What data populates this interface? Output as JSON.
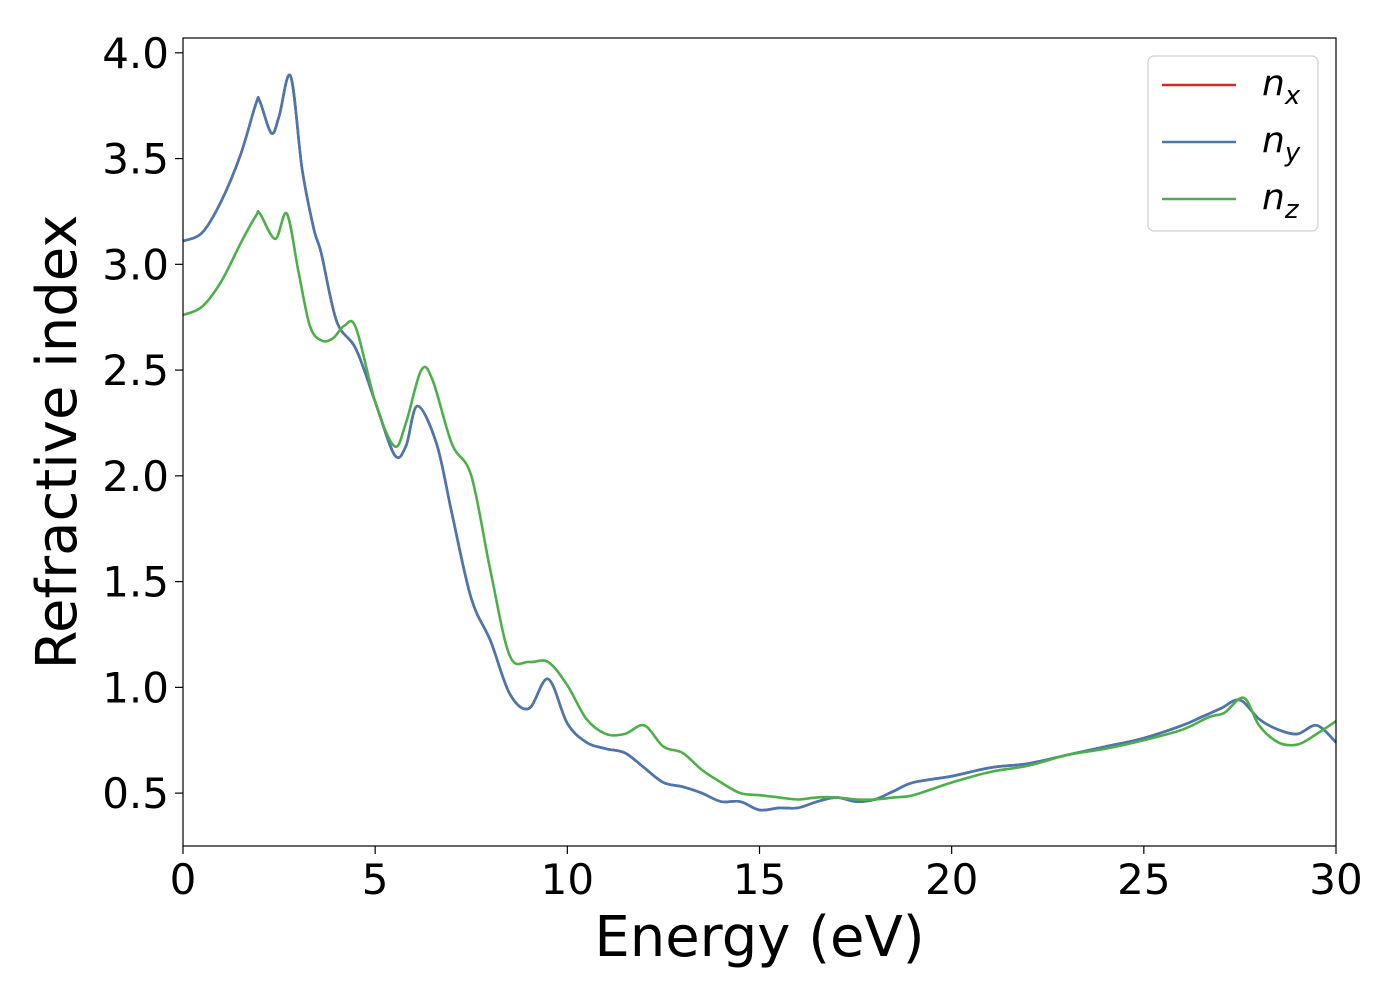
{
  "chart_data": {
    "type": "line",
    "title": "",
    "xlabel": "Energy (eV)",
    "ylabel": "Refractive index",
    "xlim": [
      0,
      30
    ],
    "ylim": [
      0.25,
      4.07
    ],
    "xticks": [
      "0",
      "5",
      "10",
      "15",
      "20",
      "25",
      "30"
    ],
    "yticks": [
      "0.5",
      "1.0",
      "1.5",
      "2.0",
      "2.5",
      "3.0",
      "3.5",
      "4.0"
    ],
    "grid": false,
    "legend_position": "top-right",
    "legend": [
      {
        "base": "n",
        "sub": "x"
      },
      {
        "base": "n",
        "sub": "y"
      },
      {
        "base": "n",
        "sub": "z"
      }
    ],
    "series": [
      {
        "color": "#d62728",
        "x": [
          0,
          0.5,
          1.0,
          1.5,
          1.9,
          2.0,
          2.3,
          2.5,
          2.8,
          3.1,
          3.4,
          3.6,
          4.0,
          4.5,
          5.0,
          5.5,
          5.8,
          6.1,
          6.6,
          7.0,
          7.5,
          8.0,
          8.5,
          9.0,
          9.5,
          10.0,
          10.5,
          11.0,
          11.5,
          12.0,
          12.5,
          13.0,
          13.5,
          14.0,
          14.5,
          15.0,
          15.5,
          16.0,
          16.5,
          17.0,
          17.5,
          18.0,
          18.5,
          19.0,
          20.0,
          21.0,
          22.0,
          23.0,
          24.0,
          25.0,
          26.0,
          26.5,
          27.0,
          27.5,
          28.0,
          28.5,
          29.0,
          29.5,
          30.0
        ],
        "y": [
          3.11,
          3.15,
          3.3,
          3.52,
          3.76,
          3.77,
          3.62,
          3.7,
          3.89,
          3.45,
          3.17,
          3.05,
          2.73,
          2.6,
          2.35,
          2.1,
          2.14,
          2.33,
          2.15,
          1.82,
          1.42,
          1.22,
          0.97,
          0.9,
          1.04,
          0.83,
          0.74,
          0.71,
          0.69,
          0.62,
          0.55,
          0.53,
          0.5,
          0.46,
          0.46,
          0.42,
          0.43,
          0.43,
          0.46,
          0.48,
          0.46,
          0.47,
          0.51,
          0.55,
          0.58,
          0.62,
          0.64,
          0.68,
          0.72,
          0.76,
          0.82,
          0.86,
          0.9,
          0.94,
          0.85,
          0.8,
          0.78,
          0.82,
          0.74
        ]
      },
      {
        "color": "#4878b0",
        "x": [
          0,
          0.5,
          1.0,
          1.5,
          1.9,
          2.0,
          2.3,
          2.5,
          2.8,
          3.1,
          3.4,
          3.6,
          4.0,
          4.5,
          5.0,
          5.5,
          5.8,
          6.1,
          6.6,
          7.0,
          7.5,
          8.0,
          8.5,
          9.0,
          9.5,
          10.0,
          10.5,
          11.0,
          11.5,
          12.0,
          12.5,
          13.0,
          13.5,
          14.0,
          14.5,
          15.0,
          15.5,
          16.0,
          16.5,
          17.0,
          17.5,
          18.0,
          18.5,
          19.0,
          20.0,
          21.0,
          22.0,
          23.0,
          24.0,
          25.0,
          26.0,
          26.5,
          27.0,
          27.5,
          28.0,
          28.5,
          29.0,
          29.5,
          30.0
        ],
        "y": [
          3.11,
          3.15,
          3.3,
          3.52,
          3.76,
          3.77,
          3.62,
          3.7,
          3.89,
          3.45,
          3.17,
          3.05,
          2.73,
          2.6,
          2.35,
          2.1,
          2.14,
          2.33,
          2.15,
          1.82,
          1.42,
          1.22,
          0.97,
          0.9,
          1.04,
          0.83,
          0.74,
          0.71,
          0.69,
          0.62,
          0.55,
          0.53,
          0.5,
          0.46,
          0.46,
          0.42,
          0.43,
          0.43,
          0.46,
          0.48,
          0.46,
          0.47,
          0.51,
          0.55,
          0.58,
          0.62,
          0.64,
          0.68,
          0.72,
          0.76,
          0.82,
          0.86,
          0.9,
          0.94,
          0.85,
          0.8,
          0.78,
          0.82,
          0.74
        ]
      },
      {
        "color": "#4daf4a",
        "x": [
          0,
          0.5,
          1.0,
          1.5,
          1.9,
          2.0,
          2.4,
          2.7,
          3.0,
          3.3,
          3.6,
          3.9,
          4.2,
          4.5,
          5.0,
          5.5,
          5.8,
          6.2,
          6.5,
          7.0,
          7.5,
          8.0,
          8.5,
          9.0,
          9.5,
          10.0,
          10.5,
          11.0,
          11.5,
          12.0,
          12.5,
          13.0,
          13.5,
          14.0,
          14.5,
          15.0,
          15.5,
          16.0,
          16.5,
          17.0,
          17.5,
          18.0,
          18.5,
          19.0,
          20.0,
          21.0,
          22.0,
          23.0,
          24.0,
          25.0,
          26.0,
          26.7,
          27.1,
          27.6,
          28.0,
          28.5,
          29.0,
          29.5,
          30.0
        ],
        "y": [
          2.76,
          2.8,
          2.92,
          3.1,
          3.23,
          3.24,
          3.12,
          3.24,
          2.97,
          2.71,
          2.64,
          2.65,
          2.71,
          2.7,
          2.35,
          2.14,
          2.25,
          2.5,
          2.45,
          2.15,
          2.0,
          1.55,
          1.15,
          1.12,
          1.12,
          1.01,
          0.85,
          0.78,
          0.78,
          0.82,
          0.72,
          0.69,
          0.61,
          0.55,
          0.5,
          0.49,
          0.48,
          0.47,
          0.48,
          0.48,
          0.47,
          0.47,
          0.48,
          0.49,
          0.55,
          0.6,
          0.63,
          0.68,
          0.71,
          0.75,
          0.8,
          0.86,
          0.88,
          0.95,
          0.82,
          0.74,
          0.73,
          0.78,
          0.84
        ]
      }
    ]
  }
}
